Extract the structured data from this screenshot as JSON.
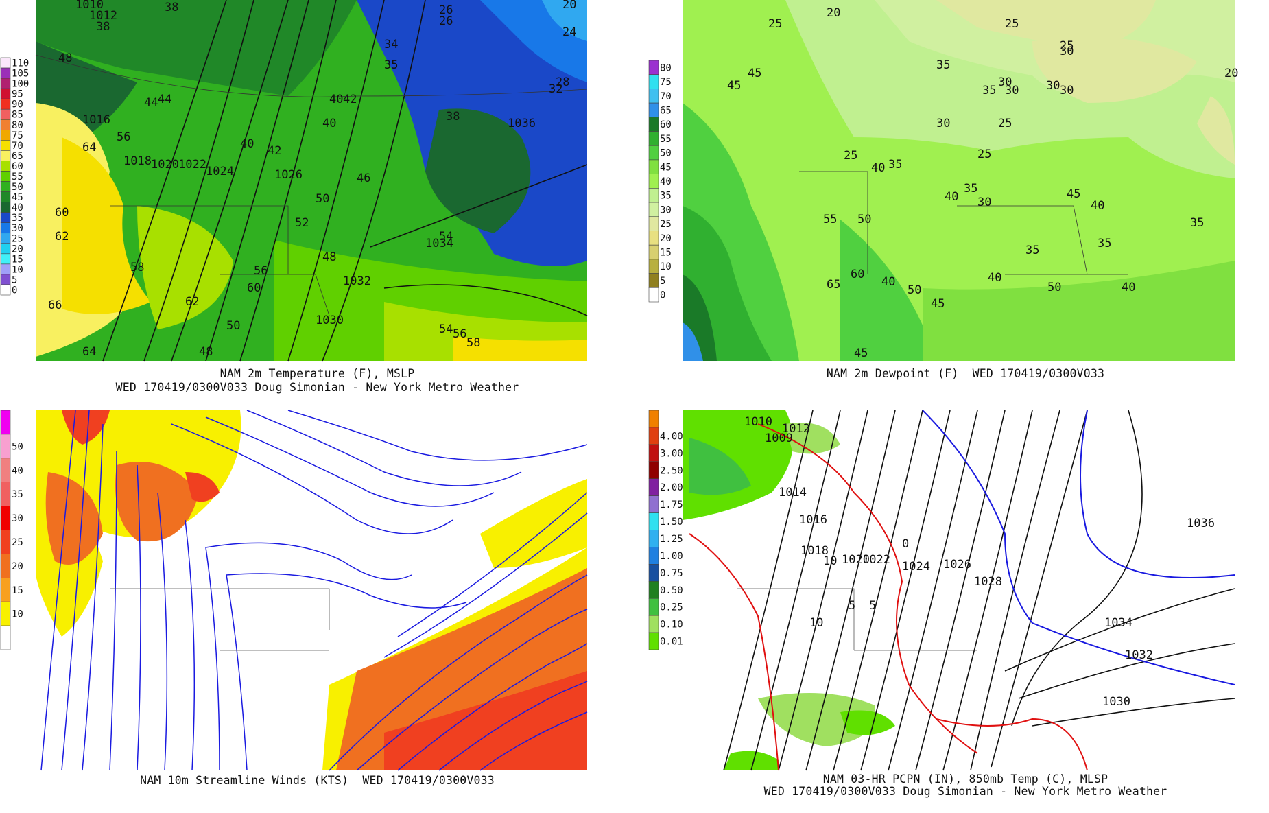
{
  "panels": [
    {
      "id": "temp",
      "caption_line1": "NAM 2m Temperature (F), MSLP",
      "caption_line2": "WED 170419/0300V033 Doug Simonian - New York Metro Weather",
      "legend": [
        {
          "label": "110",
          "color": "#fbe7fb"
        },
        {
          "label": "105",
          "color": "#9b30b8"
        },
        {
          "label": "100",
          "color": "#b02070"
        },
        {
          "label": "95",
          "color": "#d01030"
        },
        {
          "label": "90",
          "color": "#f03020"
        },
        {
          "label": "85",
          "color": "#f06060"
        },
        {
          "label": "80",
          "color": "#f08030"
        },
        {
          "label": "75",
          "color": "#f0a800"
        },
        {
          "label": "70",
          "color": "#f5e000"
        },
        {
          "label": "65",
          "color": "#f8f060"
        },
        {
          "label": "60",
          "color": "#a8e000"
        },
        {
          "label": "55",
          "color": "#60d000"
        },
        {
          "label": "50",
          "color": "#30b020"
        },
        {
          "label": "45",
          "color": "#208828"
        },
        {
          "label": "40",
          "color": "#1a6830"
        },
        {
          "label": "35",
          "color": "#1a48c8"
        },
        {
          "label": "30",
          "color": "#1878e8"
        },
        {
          "label": "25",
          "color": "#30a8f0"
        },
        {
          "label": "20",
          "color": "#20d0f0"
        },
        {
          "label": "15",
          "color": "#40f0f8"
        },
        {
          "label": "10",
          "color": "#a0a0f8"
        },
        {
          "label": "5",
          "color": "#8050d0"
        },
        {
          "label": "0",
          "color": "#ffffff"
        }
      ],
      "labels": [
        "1010",
        "1012",
        "38",
        "38",
        "26",
        "24",
        "26",
        "20",
        "48",
        "44",
        "40",
        "35",
        "38",
        "34",
        "32",
        "28",
        "40",
        "1016",
        "56",
        "64",
        "44",
        "42",
        "40",
        "1036",
        "1018",
        "1020",
        "1022",
        "1024",
        "1026",
        "50",
        "48",
        "52",
        "42",
        "46",
        "60",
        "62",
        "58",
        "54",
        "66",
        "56",
        "1030",
        "1032",
        "1034",
        "54",
        "56",
        "58",
        "64",
        "48",
        "50",
        "60",
        "62"
      ]
    },
    {
      "id": "dewpoint",
      "caption_line1": "NAM 2m Dewpoint (F)  WED 170419/0300V033",
      "legend": [
        {
          "label": "80",
          "color": "#9b30d0"
        },
        {
          "label": "75",
          "color": "#30e0f0"
        },
        {
          "label": "70",
          "color": "#40c0f0"
        },
        {
          "label": "65",
          "color": "#3090e8"
        },
        {
          "label": "60",
          "color": "#1a7a28"
        },
        {
          "label": "55",
          "color": "#30b030"
        },
        {
          "label": "50",
          "color": "#50d040"
        },
        {
          "label": "45",
          "color": "#80e040"
        },
        {
          "label": "40",
          "color": "#a0f050"
        },
        {
          "label": "35",
          "color": "#c0f090"
        },
        {
          "label": "30",
          "color": "#d0f0a0"
        },
        {
          "label": "25",
          "color": "#e0e8a0"
        },
        {
          "label": "20",
          "color": "#e8e080"
        },
        {
          "label": "15",
          "color": "#d8d070"
        },
        {
          "label": "10",
          "color": "#b8b040"
        },
        {
          "label": "5",
          "color": "#908020"
        },
        {
          "label": "0",
          "color": "#ffffff"
        }
      ],
      "labels": [
        "20",
        "25",
        "25",
        "25",
        "30",
        "30",
        "35",
        "25",
        "20",
        "30",
        "30",
        "35",
        "25",
        "25",
        "30",
        "45",
        "45",
        "40",
        "35",
        "30",
        "35",
        "30",
        "45",
        "40",
        "35",
        "35",
        "35",
        "55",
        "50",
        "40",
        "40",
        "60",
        "40",
        "45",
        "50",
        "65",
        "40",
        "50",
        "45"
      ]
    },
    {
      "id": "wind",
      "caption_line1": "NAM 10m Streamline Winds (KTS)  WED 170419/0300V033",
      "legend": [
        {
          "label": "",
          "color": "#f000f0"
        },
        {
          "label": "50",
          "color": "#f8a0d0"
        },
        {
          "label": "40",
          "color": "#f08080"
        },
        {
          "label": "35",
          "color": "#f06060"
        },
        {
          "label": "30",
          "color": "#f00000"
        },
        {
          "label": "25",
          "color": "#f04020"
        },
        {
          "label": "20",
          "color": "#f07020"
        },
        {
          "label": "15",
          "color": "#f8a020"
        },
        {
          "label": "10",
          "color": "#f8f000"
        },
        {
          "label": "",
          "color": "#ffffff"
        }
      ]
    },
    {
      "id": "precip",
      "caption_line1": "NAM 03-HR PCPN (IN), 850mb Temp (C), MLSP",
      "caption_line2": "WED 170419/0300V033 Doug Simonian - New York Metro Weather",
      "legend": [
        {
          "label": "",
          "color": "#f08000"
        },
        {
          "label": "4.00",
          "color": "#e04010"
        },
        {
          "label": "3.00",
          "color": "#c01010"
        },
        {
          "label": "2.50",
          "color": "#900000"
        },
        {
          "label": "2.00",
          "color": "#8020a0"
        },
        {
          "label": "1.75",
          "color": "#9070d0"
        },
        {
          "label": "1.50",
          "color": "#30e0f0"
        },
        {
          "label": "1.25",
          "color": "#30b0f0"
        },
        {
          "label": "1.00",
          "color": "#2080e0"
        },
        {
          "label": "0.75",
          "color": "#1850a0"
        },
        {
          "label": "0.50",
          "color": "#208020"
        },
        {
          "label": "0.25",
          "color": "#40c040"
        },
        {
          "label": "0.10",
          "color": "#a0e060"
        },
        {
          "label": "0.01",
          "color": "#60e000"
        }
      ],
      "labels": [
        "1010",
        "1012",
        "1009",
        "1014",
        "1016",
        "1018",
        "1020",
        "1022",
        "1024",
        "1026",
        "1028",
        "1036",
        "1034",
        "1032",
        "1030",
        "10",
        "10",
        "5",
        "5",
        "0"
      ]
    }
  ]
}
